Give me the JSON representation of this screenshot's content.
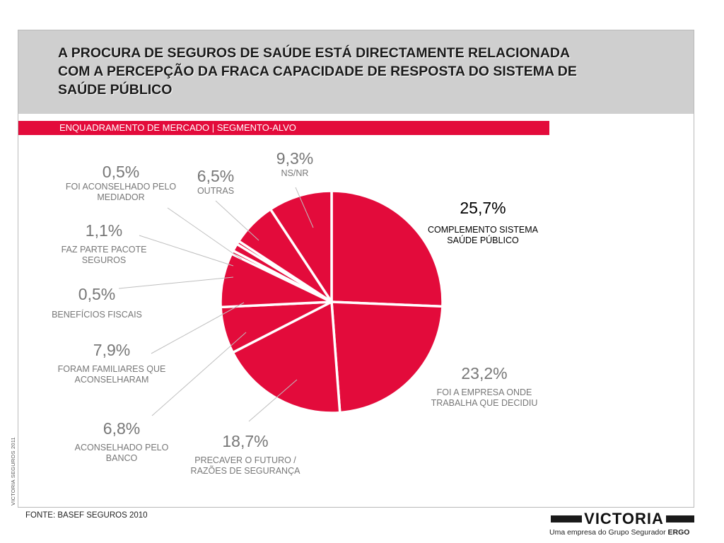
{
  "slide": {
    "title": "A PROCURA DE SEGUROS DE SAÚDE ESTÁ DIRECTAMENTE RELACIONADA COM A PERCEPÇÃO DA FRACA CAPACIDADE DE RESPOSTA DO SISTEMA DE SAÚDE PÚBLICO",
    "subtitle": "ENQUADRAMENTO DE MERCADO | SEGMENTO-ALVO",
    "side_text": "VICTORIA SEGUROS 2011",
    "source": "FONTE: BASEF SEGUROS 2010",
    "logo": {
      "name": "VICTORIA",
      "tagline": "Uma empresa do Grupo Segurador",
      "tagline_brand": "ERGO"
    }
  },
  "colors": {
    "slice": "#e30b3b",
    "header": "#cfcfcf",
    "label_gray": "#777777",
    "label_black": "#000000"
  },
  "chart_data": {
    "type": "pie",
    "slices": [
      {
        "label": "COMPLEMENTO SISTEMA SAÚDE PÚBLICO",
        "value": 25.7,
        "pct_text": "25,7%"
      },
      {
        "label": "FOI A EMPRESA ONDE TRABALHA QUE DECIDIU",
        "value": 23.2,
        "pct_text": "23,2%"
      },
      {
        "label": "PRECAVER O FUTURO / RAZÕES DE SEGURANÇA",
        "value": 18.7,
        "pct_text": "18,7%"
      },
      {
        "label": "ACONSELHADO PELO BANCO",
        "value": 6.8,
        "pct_text": "6,8%"
      },
      {
        "label": "FORAM FAMILIARES QUE ACONSELHARAM",
        "value": 7.9,
        "pct_text": "7,9%"
      },
      {
        "label": "BENEFÍCIOS FISCAIS",
        "value": 0.5,
        "pct_text": "0,5%"
      },
      {
        "label": "FAZ PARTE PACOTE SEGUROS",
        "value": 1.1,
        "pct_text": "1,1%"
      },
      {
        "label": "FOI ACONSELHADO PELO MEDIADOR",
        "value": 0.5,
        "pct_text": "0,5%"
      },
      {
        "label": "OUTRAS",
        "value": 6.5,
        "pct_text": "6,5%"
      },
      {
        "label": "NS/NR",
        "value": 9.3,
        "pct_text": "9,3%"
      }
    ],
    "start": "12 o'clock",
    "direction": "clockwise",
    "legend": "none"
  }
}
